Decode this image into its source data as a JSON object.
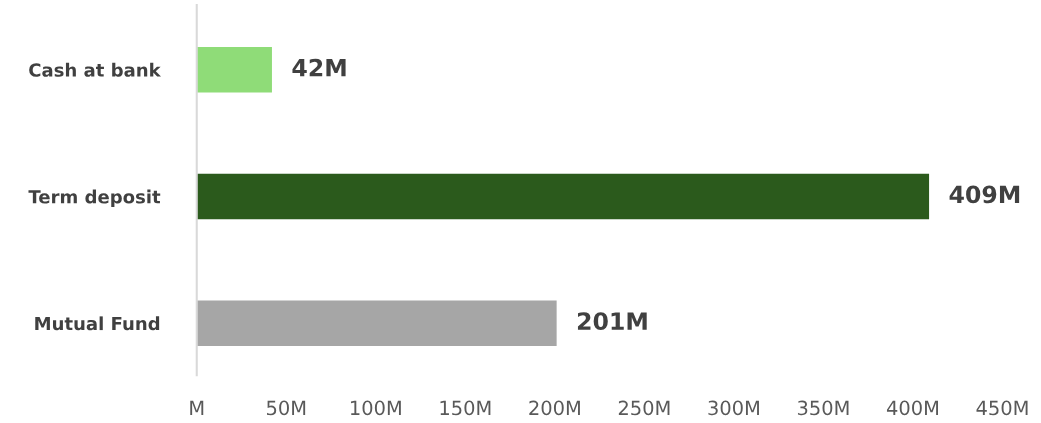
{
  "chart_data": {
    "type": "bar",
    "orientation": "horizontal",
    "categories": [
      "Cash at bank",
      "Term deposit",
      "Mutual Fund"
    ],
    "values": [
      42,
      409,
      201
    ],
    "colors": [
      "#8fdc78",
      "#2b5a1c",
      "#a6a6a6"
    ],
    "value_labels": [
      "42M",
      "409M",
      "201M"
    ],
    "xlim": [
      0,
      450
    ],
    "xticks": [
      {
        "value": 0,
        "label": "M"
      },
      {
        "value": 50,
        "label": "50M"
      },
      {
        "value": 100,
        "label": "100M"
      },
      {
        "value": 150,
        "label": "150M"
      },
      {
        "value": 200,
        "label": "200M"
      },
      {
        "value": 250,
        "label": "250M"
      },
      {
        "value": 300,
        "label": "300M"
      },
      {
        "value": 350,
        "label": "350M"
      },
      {
        "value": 400,
        "label": "400M"
      },
      {
        "value": 450,
        "label": "450M"
      }
    ],
    "grid": false,
    "legend": false
  }
}
